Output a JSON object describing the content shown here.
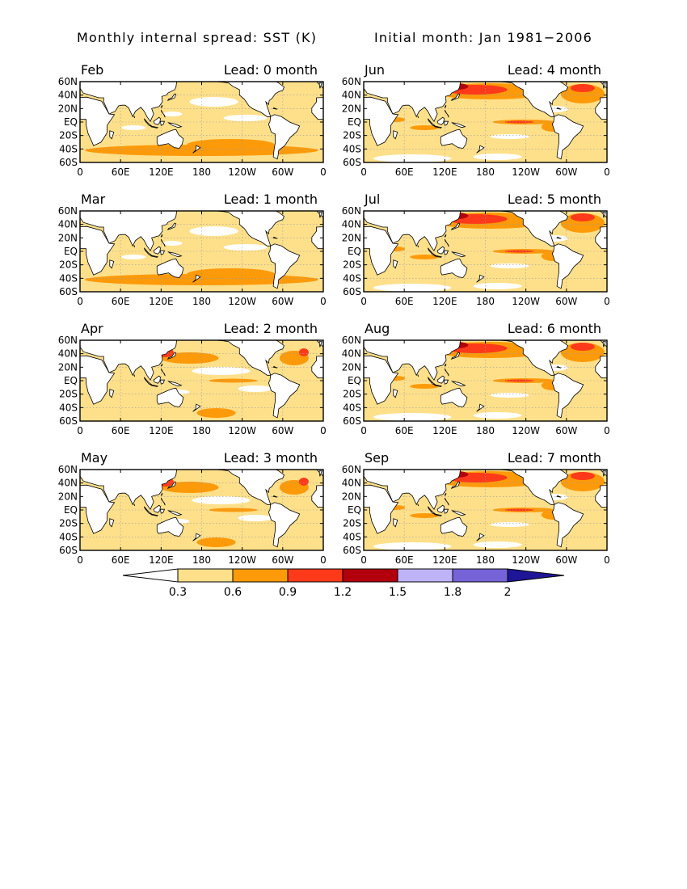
{
  "header": {
    "title": "Monthly internal spread: SST (K)",
    "initial": "Initial month: Jan 1981−2006"
  },
  "axes": {
    "lat_labels": [
      "60N",
      "40N",
      "20N",
      "EQ",
      "20S",
      "40S",
      "60S"
    ],
    "lon_labels": [
      "0",
      "60E",
      "120E",
      "180",
      "120W",
      "60W",
      "0"
    ]
  },
  "panels": [
    {
      "month": "Feb",
      "lead": "Lead: 0 month",
      "max_level": 1
    },
    {
      "month": "Mar",
      "lead": "Lead: 1 month",
      "max_level": 1
    },
    {
      "month": "Apr",
      "lead": "Lead: 2 month",
      "max_level": 2
    },
    {
      "month": "May",
      "lead": "Lead: 3 month",
      "max_level": 2
    },
    {
      "month": "Jun",
      "lead": "Lead: 4 month",
      "max_level": 3
    },
    {
      "month": "Jul",
      "lead": "Lead: 5 month",
      "max_level": 3
    },
    {
      "month": "Aug",
      "lead": "Lead: 6 month",
      "max_level": 3
    },
    {
      "month": "Sep",
      "lead": "Lead: 7 month",
      "max_level": 3
    }
  ],
  "colorbar": {
    "levels": [
      "0.3",
      "0.6",
      "0.9",
      "1.2",
      "1.5",
      "1.8",
      "2"
    ],
    "colors": [
      "#ffffff",
      "#fee08b",
      "#fd9a0a",
      "#fe3a1a",
      "#b2000d",
      "#bfb3f8",
      "#7663d8",
      "#1e1696"
    ]
  },
  "chart_data": {
    "type": "heatmap",
    "title": "Monthly internal spread: SST (K)",
    "subtitle": "Initial month: Jan 1981−2006",
    "x": [
      "0",
      "60E",
      "120E",
      "180",
      "120W",
      "60W",
      "0"
    ],
    "y": [
      "60N",
      "40N",
      "20N",
      "EQ",
      "20S",
      "40S",
      "60S"
    ],
    "ylim": [
      -60,
      60
    ],
    "grid": true,
    "contour_levels": [
      0.3,
      0.6,
      0.9,
      1.2,
      1.5,
      1.8,
      2
    ]
  }
}
